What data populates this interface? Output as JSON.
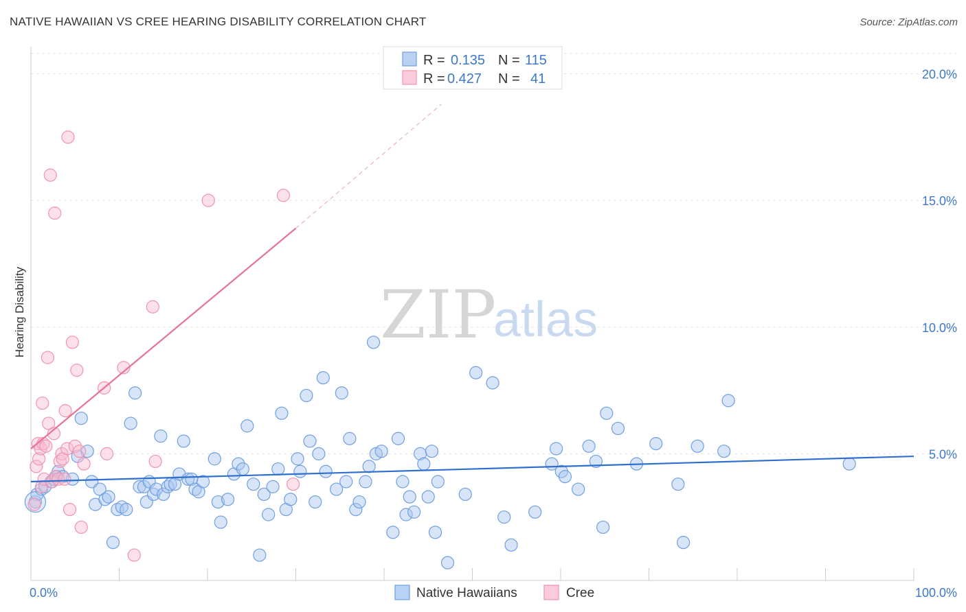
{
  "title": "NATIVE HAWAIIAN VS CREE HEARING DISABILITY CORRELATION CHART",
  "source": "Source: ZipAtlas.com",
  "watermark": {
    "left": "ZIP",
    "right": "atlas"
  },
  "colors": {
    "blue": "#6f9fe0",
    "pink": "#f093b2",
    "blue_line": "#2e6fd0",
    "pink_line": "#e8709a",
    "grid": "#e3e3e3"
  },
  "chart_data": {
    "type": "scatter",
    "title": "NATIVE HAWAIIAN VS CREE HEARING DISABILITY CORRELATION CHART",
    "xlabel": "",
    "ylabel": "Hearing Disability",
    "xlim": [
      0,
      100
    ],
    "ylim": [
      0,
      20.8
    ],
    "x_tick_labels": [
      "0.0%",
      "100.0%"
    ],
    "y_ticks": [
      5,
      10,
      15,
      20
    ],
    "y_tick_labels": [
      "5.0%",
      "10.0%",
      "15.0%",
      "20.0%"
    ],
    "grid": true,
    "legend_stats": [
      {
        "r_label": "R =",
        "r": "0.135",
        "n_label": "N =",
        "n": "115"
      },
      {
        "r_label": "R =",
        "r": "0.427",
        "n_label": "N =",
        "n": "41"
      }
    ],
    "series": [
      {
        "name": "Native Hawaiians",
        "color": "#6f9fe0",
        "trend": {
          "x": [
            0,
            100
          ],
          "y": [
            3.9,
            4.9
          ]
        },
        "points": [
          [
            0.5,
            3.1
          ],
          [
            0.7,
            3.4
          ],
          [
            1.2,
            3.6
          ],
          [
            1.6,
            3.7
          ],
          [
            2.3,
            3.9
          ],
          [
            2.6,
            4.0
          ],
          [
            2.9,
            4.1
          ],
          [
            3.1,
            4.3
          ],
          [
            3.6,
            4.1
          ],
          [
            4.7,
            4.0
          ],
          [
            5.3,
            4.9
          ],
          [
            5.7,
            6.4
          ],
          [
            6.4,
            5.1
          ],
          [
            6.9,
            3.9
          ],
          [
            7.3,
            3.0
          ],
          [
            7.8,
            3.6
          ],
          [
            8.4,
            3.2
          ],
          [
            8.8,
            3.3
          ],
          [
            9.3,
            1.5
          ],
          [
            9.8,
            2.8
          ],
          [
            10.3,
            2.9
          ],
          [
            10.8,
            2.8
          ],
          [
            11.3,
            6.2
          ],
          [
            11.8,
            7.4
          ],
          [
            12.3,
            3.7
          ],
          [
            12.8,
            3.7
          ],
          [
            13.1,
            3.1
          ],
          [
            13.4,
            3.9
          ],
          [
            13.9,
            3.4
          ],
          [
            14.2,
            3.6
          ],
          [
            14.7,
            5.7
          ],
          [
            15.0,
            3.4
          ],
          [
            15.5,
            3.7
          ],
          [
            15.8,
            3.8
          ],
          [
            16.3,
            3.8
          ],
          [
            16.8,
            4.2
          ],
          [
            17.3,
            5.5
          ],
          [
            17.8,
            4.0
          ],
          [
            18.2,
            4.0
          ],
          [
            18.6,
            3.6
          ],
          [
            19.0,
            3.5
          ],
          [
            19.5,
            3.9
          ],
          [
            20.8,
            4.8
          ],
          [
            21.2,
            3.1
          ],
          [
            21.5,
            2.3
          ],
          [
            22.3,
            3.2
          ],
          [
            23.0,
            4.2
          ],
          [
            23.5,
            4.6
          ],
          [
            24.0,
            4.4
          ],
          [
            24.5,
            6.1
          ],
          [
            25.2,
            3.8
          ],
          [
            25.9,
            1.0
          ],
          [
            26.4,
            3.4
          ],
          [
            26.9,
            2.6
          ],
          [
            27.4,
            3.7
          ],
          [
            28.0,
            4.4
          ],
          [
            28.4,
            6.6
          ],
          [
            28.9,
            2.8
          ],
          [
            29.4,
            3.2
          ],
          [
            30.2,
            4.8
          ],
          [
            30.5,
            4.3
          ],
          [
            31.2,
            7.3
          ],
          [
            31.6,
            5.5
          ],
          [
            32.2,
            3.1
          ],
          [
            32.6,
            5.0
          ],
          [
            33.1,
            8.0
          ],
          [
            33.4,
            4.3
          ],
          [
            34.6,
            3.6
          ],
          [
            35.2,
            7.4
          ],
          [
            35.7,
            3.9
          ],
          [
            36.1,
            5.6
          ],
          [
            36.8,
            2.8
          ],
          [
            37.2,
            3.1
          ],
          [
            37.9,
            3.9
          ],
          [
            38.3,
            4.5
          ],
          [
            38.8,
            9.4
          ],
          [
            39.1,
            5.0
          ],
          [
            39.7,
            5.1
          ],
          [
            41.0,
            1.9
          ],
          [
            41.6,
            5.6
          ],
          [
            42.1,
            3.9
          ],
          [
            42.5,
            2.6
          ],
          [
            42.9,
            3.3
          ],
          [
            43.4,
            2.7
          ],
          [
            44.1,
            5.0
          ],
          [
            44.5,
            4.6
          ],
          [
            45.0,
            3.3
          ],
          [
            45.4,
            5.1
          ],
          [
            45.8,
            1.9
          ],
          [
            46.1,
            3.9
          ],
          [
            47.2,
            0.7
          ],
          [
            49.2,
            3.4
          ],
          [
            50.4,
            8.2
          ],
          [
            52.3,
            7.8
          ],
          [
            53.6,
            2.5
          ],
          [
            54.4,
            1.4
          ],
          [
            57.1,
            2.7
          ],
          [
            59.0,
            4.6
          ],
          [
            59.5,
            5.2
          ],
          [
            60.1,
            4.3
          ],
          [
            60.5,
            4.1
          ],
          [
            62.0,
            3.6
          ],
          [
            63.2,
            5.3
          ],
          [
            64.0,
            4.7
          ],
          [
            64.8,
            2.1
          ],
          [
            65.2,
            6.6
          ],
          [
            66.5,
            6.0
          ],
          [
            68.6,
            4.6
          ],
          [
            70.8,
            5.4
          ],
          [
            73.3,
            3.8
          ],
          [
            73.9,
            1.5
          ],
          [
            75.5,
            5.3
          ],
          [
            78.5,
            5.1
          ],
          [
            79.0,
            7.1
          ],
          [
            92.7,
            4.6
          ]
        ]
      },
      {
        "name": "Cree",
        "color": "#f093b2",
        "trend": {
          "x": [
            0,
            30
          ],
          "y": [
            5.2,
            13.9
          ]
        },
        "trend_extension": {
          "x": [
            30,
            46.5
          ],
          "y": [
            13.9,
            18.8
          ]
        },
        "points": [
          [
            0.4,
            3.0
          ],
          [
            0.6,
            4.5
          ],
          [
            0.8,
            5.4
          ],
          [
            0.9,
            4.8
          ],
          [
            1.1,
            5.2
          ],
          [
            1.2,
            3.7
          ],
          [
            1.3,
            7.0
          ],
          [
            1.4,
            5.4
          ],
          [
            1.5,
            4.0
          ],
          [
            1.7,
            5.3
          ],
          [
            1.9,
            8.8
          ],
          [
            2.0,
            6.2
          ],
          [
            2.2,
            16.0
          ],
          [
            2.4,
            3.9
          ],
          [
            2.6,
            5.8
          ],
          [
            2.7,
            14.5
          ],
          [
            2.8,
            4.1
          ],
          [
            3.1,
            4.0
          ],
          [
            3.3,
            4.7
          ],
          [
            3.5,
            5.0
          ],
          [
            3.6,
            4.8
          ],
          [
            3.8,
            4.0
          ],
          [
            3.9,
            6.7
          ],
          [
            4.1,
            5.2
          ],
          [
            4.2,
            17.5
          ],
          [
            4.4,
            2.8
          ],
          [
            4.7,
            9.4
          ],
          [
            5.0,
            5.3
          ],
          [
            5.2,
            8.3
          ],
          [
            5.5,
            5.1
          ],
          [
            5.7,
            2.1
          ],
          [
            6.0,
            4.6
          ],
          [
            8.3,
            7.6
          ],
          [
            8.6,
            5.0
          ],
          [
            10.5,
            8.4
          ],
          [
            11.7,
            1.0
          ],
          [
            13.8,
            10.8
          ],
          [
            14.1,
            4.7
          ],
          [
            20.1,
            15.0
          ],
          [
            28.6,
            15.2
          ],
          [
            29.7,
            3.8
          ]
        ]
      }
    ]
  }
}
